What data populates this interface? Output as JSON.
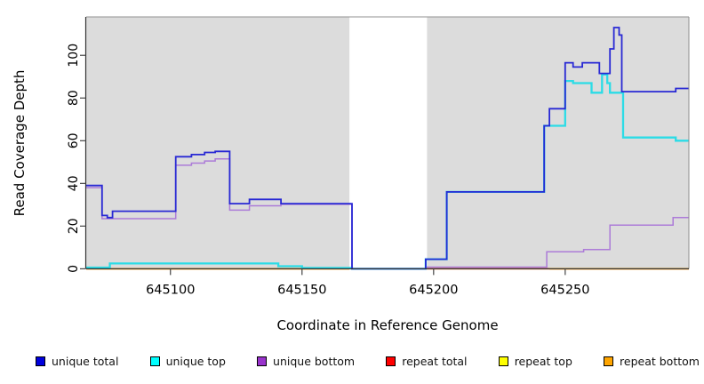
{
  "chart_data": {
    "type": "step-line",
    "title": "",
    "xlabel": "Coordinate in Reference Genome",
    "ylabel": "Read Coverage Depth",
    "xlim": [
      645068,
      645297
    ],
    "ylim": [
      0,
      118
    ],
    "x_ticks": [
      645100,
      645150,
      645200,
      645250
    ],
    "y_ticks": [
      0,
      20,
      40,
      60,
      80,
      100
    ],
    "grid": false,
    "plot_bg": "#DCDCDC",
    "no_data_region": {
      "x0": 645168,
      "x1": 645197.5,
      "color": "#FFFFFF"
    },
    "legend_position": "bottom",
    "series": [
      {
        "name": "repeat-top",
        "label": "repeat top",
        "color": "#FFFF00",
        "width": 1.5,
        "segments": [
          [
            [
              645068,
              0
            ],
            [
              645168,
              0
            ]
          ],
          [
            [
              645197,
              0
            ],
            [
              645297,
              0
            ]
          ]
        ]
      },
      {
        "name": "repeat-total",
        "label": "repeat total",
        "color": "#FF0000",
        "width": 1.5,
        "segments": [
          [
            [
              645068,
              0
            ],
            [
              645168,
              0
            ]
          ],
          [
            [
              645197,
              0
            ],
            [
              645297,
              0
            ]
          ]
        ]
      },
      {
        "name": "repeat-bottom",
        "label": "repeat bottom",
        "color": "#FFA500",
        "width": 1.7,
        "segments": [
          [
            [
              645068,
              0
            ],
            [
              645168,
              0
            ]
          ],
          [
            [
              645244,
              0
            ],
            [
              645297,
              0
            ]
          ]
        ]
      },
      {
        "name": "unique-bottom",
        "label": "unique bottom",
        "color": "#AC7BD8",
        "width": 1.5,
        "segments": [
          [
            [
              645068,
              38
            ],
            [
              645074,
              23.5
            ],
            [
              645102,
              48.5
            ],
            [
              645108,
              49.5
            ],
            [
              645113,
              50.5
            ],
            [
              645117,
              51.5
            ],
            [
              645122.5,
              27.5
            ],
            [
              645130,
              29.5
            ],
            [
              645142,
              30.2
            ],
            [
              645169,
              0
            ],
            [
              645197,
              0.8
            ],
            [
              645243,
              8
            ],
            [
              645257,
              9
            ],
            [
              645267,
              20.5
            ],
            [
              645291,
              24
            ],
            [
              645297,
              24
            ]
          ]
        ]
      },
      {
        "name": "unique-top",
        "label": "unique top",
        "color": "#2BDCE6",
        "width": 2.3,
        "segments": [
          [
            [
              645068,
              0.6
            ],
            [
              645077,
              2.5
            ],
            [
              645141,
              1.2
            ],
            [
              645150,
              0.4
            ],
            [
              645169,
              0
            ],
            [
              645197,
              4.5
            ],
            [
              645205,
              36
            ],
            [
              645242,
              67
            ],
            [
              645250,
              88
            ],
            [
              645253,
              87
            ],
            [
              645260,
              82.5
            ],
            [
              645264,
              91
            ],
            [
              645266,
              87
            ],
            [
              645267,
              82.5
            ],
            [
              645272,
              61.5
            ],
            [
              645292,
              60
            ],
            [
              645297,
              60
            ]
          ]
        ]
      },
      {
        "name": "unique-total",
        "label": "unique total",
        "color": "#2828D4",
        "width": 1.8,
        "segments": [
          [
            [
              645068,
              39
            ],
            [
              645074,
              25
            ],
            [
              645076,
              24
            ],
            [
              645078,
              27
            ],
            [
              645102,
              52.5
            ],
            [
              645108,
              53.5
            ],
            [
              645113,
              54.5
            ],
            [
              645117,
              55
            ],
            [
              645122.5,
              30.5
            ],
            [
              645130,
              32.5
            ],
            [
              645142,
              30.5
            ],
            [
              645169,
              0
            ],
            [
              645197,
              4.5
            ],
            [
              645205,
              36
            ],
            [
              645242,
              67
            ],
            [
              645244,
              75
            ],
            [
              645250,
              96.5
            ],
            [
              645253,
              94.5
            ],
            [
              645256.5,
              96.5
            ],
            [
              645263,
              91.5
            ],
            [
              645267,
              103
            ],
            [
              645268.5,
              113
            ],
            [
              645270.5,
              109.5
            ],
            [
              645271.5,
              83
            ],
            [
              645292,
              84.5
            ],
            [
              645297,
              84.5
            ]
          ]
        ]
      }
    ]
  },
  "legend": {
    "items": [
      {
        "label": "unique total",
        "swatch_color": "#0000DD"
      },
      {
        "label": "unique top",
        "swatch_color": "#00FFFF"
      },
      {
        "label": "unique bottom",
        "swatch_color": "#9933CC"
      },
      {
        "label": "repeat total",
        "swatch_color": "#FF0000"
      },
      {
        "label": "repeat top",
        "swatch_color": "#FFFF00"
      },
      {
        "label": "repeat bottom",
        "swatch_color": "#FFA500"
      }
    ]
  }
}
